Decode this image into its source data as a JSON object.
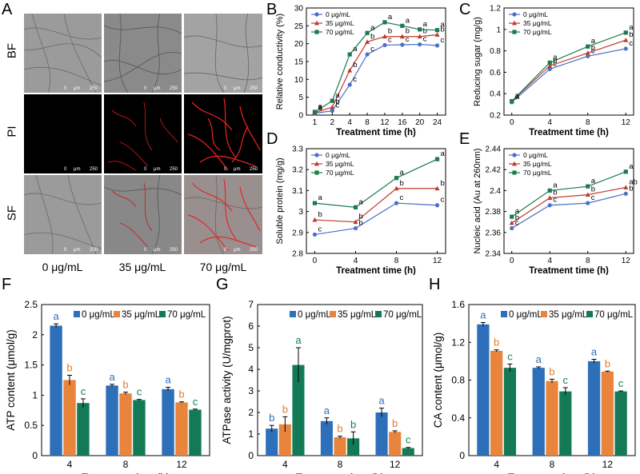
{
  "microscopy": {
    "panel_label": "A",
    "rows": [
      "BF",
      "PI",
      "SF"
    ],
    "columns": [
      "0 μg/mL",
      "35 μg/mL",
      "70 μg/mL"
    ],
    "scale_text": [
      "0",
      "μm",
      "250"
    ]
  },
  "colors": {
    "c0_line": "#4a6fc8",
    "c35_line": "#c0392b",
    "c70_line": "#1b7a4e",
    "c0_bar": "#2e6fba",
    "c35_bar": "#e8843c",
    "c70_bar": "#147a56",
    "letter0": "#2e6fba",
    "letter35": "#e07a2e",
    "letter70": "#147a56"
  },
  "chart_data": [
    {
      "id": "B",
      "type": "line",
      "ylabel": "Relative conductivity (%)",
      "xlabel": "Treatment time (h)",
      "categories": [
        "1",
        "2",
        "4",
        "8",
        "12",
        "16",
        "20",
        "24"
      ],
      "ylim": [
        0,
        30
      ],
      "yticks": [
        "0",
        "5",
        "10",
        "15",
        "20",
        "25",
        "30"
      ],
      "ytick_values": [
        0,
        5,
        10,
        15,
        20,
        25,
        30
      ],
      "legend": [
        "0 μg/mL",
        "35 μg/mL",
        "70 μg/mL"
      ],
      "series": [
        {
          "name": "0 μg/mL",
          "values": [
            0.5,
            1.2,
            8.5,
            17,
            19.6,
            19.7,
            19.8,
            19.5
          ],
          "letters": [
            "a",
            "c",
            "c",
            "c",
            "c",
            "c",
            "c",
            "c"
          ]
        },
        {
          "name": "35 μg/mL",
          "values": [
            0.7,
            2.2,
            12.5,
            20.5,
            22,
            22,
            22,
            22.5
          ],
          "letters": [
            "a",
            "b",
            "b",
            "b",
            "b",
            "b",
            "b",
            "b"
          ]
        },
        {
          "name": "70 μg/mL",
          "values": [
            0.9,
            4,
            17,
            23,
            26,
            25,
            24,
            23.8
          ],
          "letters": [
            "a",
            "a",
            "a",
            "a",
            "a",
            "a",
            "a",
            "a"
          ]
        }
      ]
    },
    {
      "id": "C",
      "type": "line",
      "ylabel": "Reducing sugar (mg/g)",
      "xlabel": "Treatment time (h)",
      "categories": [
        "0",
        "4",
        "8",
        "12"
      ],
      "ylim": [
        0.2,
        1.2
      ],
      "yticks": [
        "0.2",
        "0.4",
        "0.6",
        "0.8",
        "1",
        "1.2"
      ],
      "ytick_values": [
        0.2,
        0.4,
        0.6,
        0.8,
        1,
        1.2
      ],
      "legend": [
        "0 μg/mL",
        "35 μg/mL",
        "70 μg/mL"
      ],
      "series": [
        {
          "name": "0 μg/mL",
          "values": [
            0.32,
            0.63,
            0.75,
            0.82
          ],
          "letters": [
            "a",
            "c",
            "c",
            "c"
          ]
        },
        {
          "name": "35 μg/mL",
          "values": [
            0.33,
            0.66,
            0.78,
            0.9
          ],
          "letters": [
            "a",
            "b",
            "b",
            "b"
          ]
        },
        {
          "name": "70 μg/mL",
          "values": [
            0.33,
            0.69,
            0.84,
            0.97
          ],
          "letters": [
            "a",
            "a",
            "a",
            "a"
          ]
        }
      ]
    },
    {
      "id": "D",
      "type": "line",
      "ylabel": "Soluble protein (mg/g)",
      "xlabel": "Treatment time (h)",
      "categories": [
        "0",
        "4",
        "8",
        "12"
      ],
      "ylim": [
        2.8,
        3.3
      ],
      "yticks": [
        "2.8",
        "2.9",
        "3",
        "3.1",
        "3.2",
        "3.3"
      ],
      "ytick_values": [
        2.8,
        2.9,
        3.0,
        3.1,
        3.2,
        3.3
      ],
      "legend": [
        "0 μg/mL",
        "35 μg/mL",
        "70 μg/mL"
      ],
      "series": [
        {
          "name": "0 μg/mL",
          "values": [
            2.89,
            2.92,
            3.04,
            3.03
          ],
          "letters": [
            "c",
            "b",
            "c",
            "c"
          ]
        },
        {
          "name": "35 μg/mL",
          "values": [
            2.96,
            2.95,
            3.11,
            3.11
          ],
          "letters": [
            "b",
            "b",
            "b",
            "b"
          ]
        },
        {
          "name": "70 μg/mL",
          "values": [
            3.04,
            3.02,
            3.16,
            3.25
          ],
          "letters": [
            "a",
            "a",
            "a",
            "a"
          ]
        }
      ]
    },
    {
      "id": "E",
      "type": "line",
      "ylabel": "Nucleic acid (Au at 260nm)",
      "xlabel": "Treatment time (h)",
      "categories": [
        "0",
        "4",
        "8",
        "12"
      ],
      "ylim": [
        2.34,
        2.44
      ],
      "yticks": [
        "2.34",
        "2.36",
        "2.38",
        "2.4",
        "2.42",
        "2.44"
      ],
      "ytick_values": [
        2.34,
        2.36,
        2.38,
        2.4,
        2.42,
        2.44
      ],
      "legend": [
        "0 μg/mL",
        "35 μg/mL",
        "70 μg/mL"
      ],
      "series": [
        {
          "name": "0 μg/mL",
          "values": [
            2.364,
            2.386,
            2.388,
            2.397
          ],
          "letters": [
            "c",
            "c",
            "c",
            "b"
          ]
        },
        {
          "name": "35 μg/mL",
          "values": [
            2.369,
            2.393,
            2.396,
            2.403
          ],
          "letters": [
            "b",
            "b",
            "b",
            "ab"
          ]
        },
        {
          "name": "70 μg/mL",
          "values": [
            2.375,
            2.4,
            2.404,
            2.418
          ],
          "letters": [
            "a",
            "a",
            "a",
            "a"
          ]
        }
      ]
    },
    {
      "id": "F",
      "type": "bar",
      "ylabel": "ATP content (μmol/g)",
      "xlabel": "Treatment time (h)",
      "categories": [
        "4",
        "8",
        "12"
      ],
      "ylim": [
        0,
        2.5
      ],
      "yticks": [
        "0",
        "0.5",
        "1",
        "1.5",
        "2",
        "2.5"
      ],
      "ytick_values": [
        0,
        0.5,
        1,
        1.5,
        2,
        2.5
      ],
      "legend": [
        "0 μg/mL",
        "35 μg/mL",
        "70 μg/mL"
      ],
      "series": [
        {
          "name": "0 μg/mL",
          "values": [
            2.15,
            1.16,
            1.1
          ],
          "errors": [
            0.03,
            0.02,
            0.03
          ],
          "letters": [
            "a",
            "a",
            "a"
          ]
        },
        {
          "name": "35 μg/mL",
          "values": [
            1.25,
            1.03,
            0.88
          ],
          "errors": [
            0.08,
            0.02,
            0.01
          ],
          "letters": [
            "b",
            "b",
            "b"
          ]
        },
        {
          "name": "70 μg/mL",
          "values": [
            0.87,
            0.92,
            0.76
          ],
          "errors": [
            0.07,
            0.01,
            0.01
          ],
          "letters": [
            "c",
            "c",
            "c"
          ]
        }
      ]
    },
    {
      "id": "G",
      "type": "bar",
      "ylabel": "ATPase activity (U/mgprot)",
      "xlabel": "Treatment time (h)",
      "categories": [
        "4",
        "8",
        "12"
      ],
      "ylim": [
        0,
        7
      ],
      "yticks": [
        "0",
        "1",
        "2",
        "3",
        "4",
        "5",
        "6",
        "7"
      ],
      "ytick_values": [
        0,
        1,
        2,
        3,
        4,
        5,
        6,
        7
      ],
      "legend": [
        "0 μg/mL",
        "35 μg/mL",
        "70 μg/mL"
      ],
      "series": [
        {
          "name": "0 μg/mL",
          "values": [
            1.25,
            1.6,
            2.0
          ],
          "errors": [
            0.15,
            0.15,
            0.2
          ],
          "letters": [
            "b",
            "a",
            "a"
          ]
        },
        {
          "name": "35 μg/mL",
          "values": [
            1.45,
            0.85,
            1.1
          ],
          "errors": [
            0.35,
            0.05,
            0.05
          ],
          "letters": [
            "b",
            "b",
            "b"
          ]
        },
        {
          "name": "70 μg/mL",
          "values": [
            4.2,
            0.8,
            0.35
          ],
          "errors": [
            0.8,
            0.3,
            0.03
          ],
          "letters": [
            "a",
            "b",
            "c"
          ]
        }
      ]
    },
    {
      "id": "H",
      "type": "bar",
      "ylabel": "CA content (μmol/g)",
      "xlabel": "Treatment time (h)",
      "categories": [
        "4",
        "8",
        "12"
      ],
      "ylim": [
        0,
        1.6
      ],
      "yticks": [
        "0",
        "0.4",
        "0.8",
        "1.2",
        "1.6"
      ],
      "ytick_values": [
        0,
        0.4,
        0.8,
        1.2,
        1.6
      ],
      "legend": [
        "0 μg/mL",
        "35 μg/mL",
        "70 μg/mL"
      ],
      "series": [
        {
          "name": "0 μg/mL",
          "values": [
            1.39,
            0.93,
            1.0
          ],
          "errors": [
            0.02,
            0.01,
            0.02
          ],
          "letters": [
            "a",
            "a",
            "a"
          ]
        },
        {
          "name": "35 μg/mL",
          "values": [
            1.11,
            0.79,
            0.89
          ],
          "errors": [
            0.01,
            0.02,
            0.005
          ],
          "letters": [
            "b",
            "b",
            "b"
          ]
        },
        {
          "name": "70 μg/mL",
          "values": [
            0.93,
            0.68,
            0.68
          ],
          "errors": [
            0.04,
            0.04,
            0.005
          ],
          "letters": [
            "c",
            "c",
            "c"
          ]
        }
      ]
    }
  ]
}
